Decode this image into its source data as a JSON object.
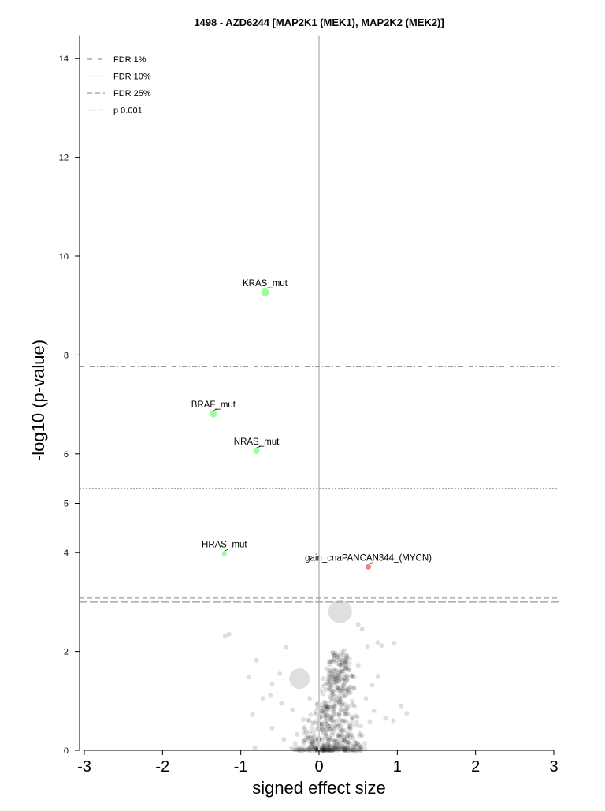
{
  "chart_data": {
    "type": "scatter",
    "title": "1498 - AZD6244 [MAP2K1 (MEK1), MAP2K2 (MEK2)]",
    "xlabel": "signed effect size",
    "ylabel": "-log10 (p-value)",
    "xlim": [
      -3,
      3
    ],
    "ylim": [
      0,
      14.2
    ],
    "x_ticks": [
      -3,
      -2,
      -1,
      0,
      1,
      2,
      3
    ],
    "y_ticks": [
      0,
      2,
      4,
      5,
      6,
      8,
      10,
      12,
      14
    ],
    "grid": false,
    "legend_position": "top-left",
    "thresholds": [
      {
        "name": "FDR 1%",
        "y": 7.76,
        "style": "dashdot"
      },
      {
        "name": "FDR 10%",
        "y": 5.3,
        "style": "dotted"
      },
      {
        "name": "FDR 25%",
        "y": 3.08,
        "style": "dashed"
      },
      {
        "name": "p 0.001",
        "y": 3.0,
        "style": "longdash"
      }
    ],
    "highlighted_points": [
      {
        "label": "KRAS_mut",
        "x": -0.69,
        "y": 9.27,
        "size": 5,
        "color": "#99ff99"
      },
      {
        "label": "BRAF_mut",
        "x": -1.35,
        "y": 6.81,
        "size": 4.5,
        "color": "#99ff99"
      },
      {
        "label": "NRAS_mut",
        "x": -0.8,
        "y": 6.06,
        "size": 4,
        "color": "#99ff99"
      },
      {
        "label": "HRAS_mut",
        "x": -1.21,
        "y": 3.98,
        "size": 3,
        "color": "#99ff99"
      },
      {
        "label": "gain_cnaPANCAN344_(MYCN)",
        "x": 0.63,
        "y": 3.71,
        "size": 3.5,
        "color": "#f08080"
      }
    ],
    "large_points": [
      {
        "x": 0.27,
        "y": 2.81,
        "size": 15
      },
      {
        "x": -0.25,
        "y": 1.45,
        "size": 13
      }
    ],
    "background_points": [
      [
        -1.2,
        2.32
      ],
      [
        -1.15,
        2.35
      ],
      [
        0.5,
        2.55
      ],
      [
        0.55,
        2.45
      ],
      [
        0.62,
        2.1
      ],
      [
        0.75,
        2.18
      ],
      [
        0.96,
        2.17
      ],
      [
        0.8,
        2.12
      ],
      [
        -0.8,
        1.82
      ],
      [
        -0.42,
        2.08
      ],
      [
        -0.5,
        1.55
      ],
      [
        -0.9,
        1.48
      ],
      [
        -0.6,
        1.35
      ],
      [
        -0.62,
        1.12
      ],
      [
        -0.72,
        1.05
      ],
      [
        -0.85,
        0.72
      ],
      [
        -0.48,
        0.95
      ],
      [
        -0.34,
        0.82
      ],
      [
        -0.2,
        0.62
      ],
      [
        -0.12,
        1.05
      ],
      [
        0.05,
        1.45
      ],
      [
        0.22,
        1.62
      ],
      [
        0.28,
        1.82
      ],
      [
        0.32,
        2.02
      ],
      [
        0.18,
        1.2
      ],
      [
        0.45,
        1.25
      ],
      [
        0.6,
        1.05
      ],
      [
        0.7,
        0.8
      ],
      [
        0.85,
        0.65
      ],
      [
        1.05,
        0.9
      ],
      [
        1.12,
        0.75
      ],
      [
        0.95,
        0.6
      ],
      [
        0.4,
        0.45
      ],
      [
        0.55,
        0.3
      ],
      [
        0.3,
        0.82
      ],
      [
        0.13,
        0.5
      ],
      [
        0.05,
        0.35
      ],
      [
        -0.05,
        0.2
      ],
      [
        -0.08,
        0.55
      ],
      [
        -0.28,
        0.32
      ],
      [
        -0.45,
        0.22
      ],
      [
        -0.6,
        0.45
      ],
      [
        -0.82,
        0.05
      ],
      [
        -0.35,
        0.05
      ],
      [
        0.2,
        0.1
      ],
      [
        0.65,
        0.58
      ],
      [
        0.75,
        1.5
      ],
      [
        0.68,
        1.32
      ],
      [
        0.5,
        1.72
      ],
      [
        0.36,
        1.5
      ],
      [
        -0.02,
        0.85
      ],
      [
        0.1,
        0.72
      ],
      [
        -0.18,
        0.42
      ],
      [
        0.25,
        0.28
      ],
      [
        0.43,
        0.92
      ]
    ]
  }
}
